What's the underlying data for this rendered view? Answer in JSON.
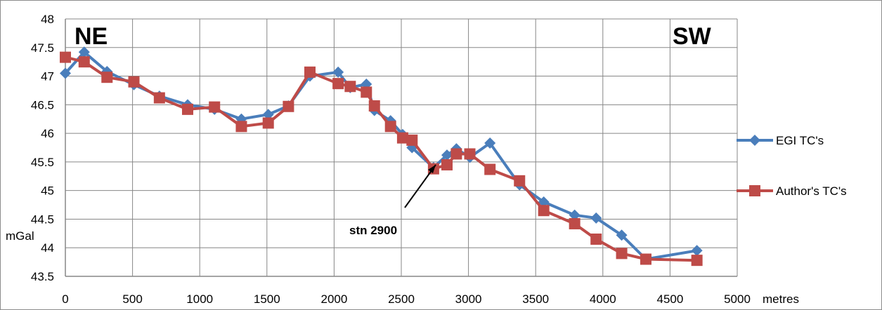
{
  "chart_data": {
    "type": "line",
    "xlabel": "metres",
    "ylabel": "mGal",
    "xlim": [
      0,
      5000
    ],
    "ylim": [
      43.5,
      48
    ],
    "x_ticks": [
      "0",
      "500",
      "1000",
      "1500",
      "2000",
      "2500",
      "3000",
      "3500",
      "4000",
      "4500",
      "5000"
    ],
    "y_ticks": [
      "43.5",
      "44",
      "44.5",
      "45",
      "45.5",
      "46",
      "46.5",
      "47",
      "47.5",
      "48"
    ],
    "grid": true,
    "legend_position": "right",
    "corner_labels": {
      "left": "NE",
      "right": "SW"
    },
    "annotation": {
      "text": "stn 2900",
      "x": 2740,
      "y": 45.35
    },
    "series": [
      {
        "name": "EGI TC's",
        "color": "#4a7ebb",
        "marker": "diamond",
        "points": [
          [
            0,
            47.05
          ],
          [
            140,
            47.42
          ],
          [
            310,
            47.08
          ],
          [
            510,
            46.85
          ],
          [
            700,
            46.65
          ],
          [
            910,
            46.5
          ],
          [
            1110,
            46.42
          ],
          [
            1310,
            46.25
          ],
          [
            1510,
            46.33
          ],
          [
            1660,
            46.48
          ],
          [
            1820,
            47.0
          ],
          [
            2030,
            47.07
          ],
          [
            2120,
            46.8
          ],
          [
            2240,
            46.86
          ],
          [
            2300,
            46.4
          ],
          [
            2420,
            46.22
          ],
          [
            2510,
            45.98
          ],
          [
            2580,
            45.75
          ],
          [
            2740,
            45.4
          ],
          [
            2840,
            45.62
          ],
          [
            2910,
            45.73
          ],
          [
            3010,
            45.58
          ],
          [
            3160,
            45.83
          ],
          [
            3380,
            45.1
          ],
          [
            3560,
            44.8
          ],
          [
            3790,
            44.57
          ],
          [
            3950,
            44.52
          ],
          [
            4140,
            44.22
          ],
          [
            4320,
            43.8
          ],
          [
            4700,
            43.95
          ]
        ]
      },
      {
        "name": "Author's TC's",
        "color": "#be4b48",
        "marker": "square",
        "points": [
          [
            0,
            47.33
          ],
          [
            140,
            47.25
          ],
          [
            310,
            46.98
          ],
          [
            510,
            46.9
          ],
          [
            700,
            46.62
          ],
          [
            910,
            46.42
          ],
          [
            1110,
            46.46
          ],
          [
            1310,
            46.12
          ],
          [
            1510,
            46.18
          ],
          [
            1660,
            46.47
          ],
          [
            1820,
            47.07
          ],
          [
            2030,
            46.87
          ],
          [
            2120,
            46.82
          ],
          [
            2240,
            46.72
          ],
          [
            2300,
            46.48
          ],
          [
            2420,
            46.12
          ],
          [
            2510,
            45.92
          ],
          [
            2580,
            45.88
          ],
          [
            2740,
            45.38
          ],
          [
            2840,
            45.45
          ],
          [
            2910,
            45.64
          ],
          [
            3010,
            45.64
          ],
          [
            3160,
            45.37
          ],
          [
            3380,
            45.17
          ],
          [
            3560,
            44.65
          ],
          [
            3790,
            44.42
          ],
          [
            3950,
            44.15
          ],
          [
            4140,
            43.9
          ],
          [
            4320,
            43.8
          ],
          [
            4700,
            43.78
          ]
        ]
      }
    ]
  }
}
